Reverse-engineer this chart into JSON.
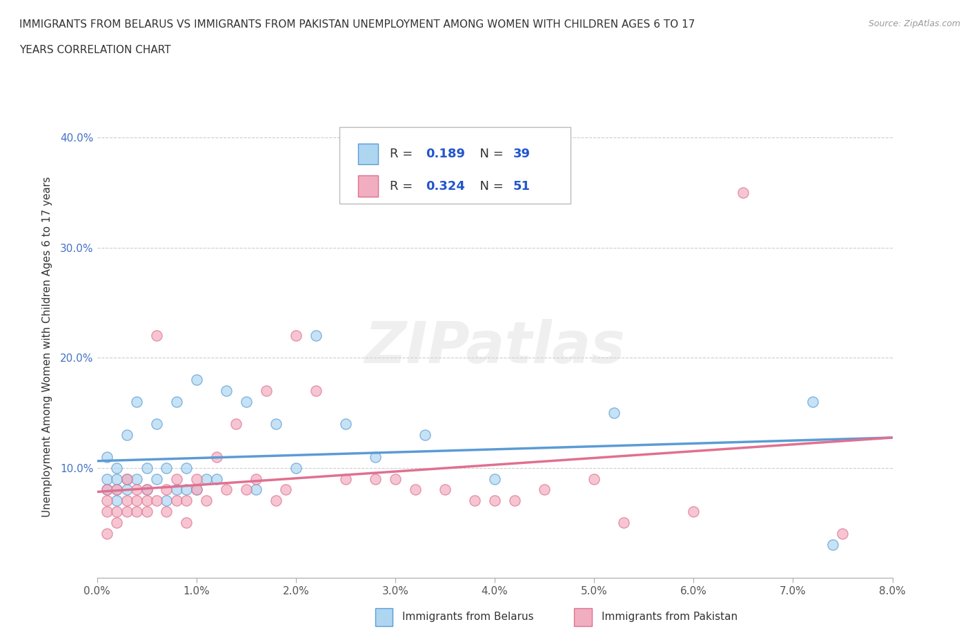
{
  "title_line1": "IMMIGRANTS FROM BELARUS VS IMMIGRANTS FROM PAKISTAN UNEMPLOYMENT AMONG WOMEN WITH CHILDREN AGES 6 TO 17",
  "title_line2": "YEARS CORRELATION CHART",
  "source_text": "Source: ZipAtlas.com",
  "ylabel": "Unemployment Among Women with Children Ages 6 to 17 years",
  "xlim": [
    0.0,
    0.08
  ],
  "ylim": [
    0.0,
    0.42
  ],
  "xticks": [
    0.0,
    0.01,
    0.02,
    0.03,
    0.04,
    0.05,
    0.06,
    0.07,
    0.08
  ],
  "yticks": [
    0.0,
    0.1,
    0.2,
    0.3,
    0.4
  ],
  "xticklabels": [
    "0.0%",
    "1.0%",
    "2.0%",
    "3.0%",
    "4.0%",
    "5.0%",
    "6.0%",
    "7.0%",
    "8.0%"
  ],
  "yticklabels": [
    "",
    "10.0%",
    "20.0%",
    "30.0%",
    "40.0%"
  ],
  "belarus_R": 0.189,
  "belarus_N": 39,
  "pakistan_R": 0.324,
  "pakistan_N": 51,
  "belarus_color": "#aed6f1",
  "pakistan_color": "#f1aec0",
  "belarus_line_color": "#5b9bd5",
  "pakistan_line_color": "#e07090",
  "watermark_text": "ZIPatlas",
  "legend_label_belarus": "Immigrants from Belarus",
  "legend_label_pakistan": "Immigrants from Pakistan",
  "belarus_x": [
    0.001,
    0.001,
    0.001,
    0.002,
    0.002,
    0.002,
    0.002,
    0.003,
    0.003,
    0.003,
    0.004,
    0.004,
    0.005,
    0.005,
    0.006,
    0.006,
    0.007,
    0.007,
    0.008,
    0.008,
    0.009,
    0.009,
    0.01,
    0.01,
    0.011,
    0.012,
    0.013,
    0.015,
    0.016,
    0.018,
    0.02,
    0.022,
    0.025,
    0.028,
    0.033,
    0.04,
    0.052,
    0.072,
    0.074
  ],
  "belarus_y": [
    0.08,
    0.09,
    0.11,
    0.07,
    0.08,
    0.09,
    0.1,
    0.08,
    0.09,
    0.13,
    0.09,
    0.16,
    0.08,
    0.1,
    0.09,
    0.14,
    0.07,
    0.1,
    0.08,
    0.16,
    0.08,
    0.1,
    0.08,
    0.18,
    0.09,
    0.09,
    0.17,
    0.16,
    0.08,
    0.14,
    0.1,
    0.22,
    0.14,
    0.11,
    0.13,
    0.09,
    0.15,
    0.16,
    0.03
  ],
  "pakistan_x": [
    0.001,
    0.001,
    0.001,
    0.001,
    0.002,
    0.002,
    0.002,
    0.003,
    0.003,
    0.003,
    0.004,
    0.004,
    0.004,
    0.005,
    0.005,
    0.005,
    0.006,
    0.006,
    0.007,
    0.007,
    0.008,
    0.008,
    0.009,
    0.009,
    0.01,
    0.01,
    0.011,
    0.012,
    0.013,
    0.014,
    0.015,
    0.016,
    0.017,
    0.018,
    0.019,
    0.02,
    0.022,
    0.025,
    0.028,
    0.03,
    0.032,
    0.035,
    0.038,
    0.04,
    0.042,
    0.045,
    0.05,
    0.053,
    0.06,
    0.065,
    0.075
  ],
  "pakistan_y": [
    0.04,
    0.06,
    0.07,
    0.08,
    0.05,
    0.06,
    0.08,
    0.06,
    0.07,
    0.09,
    0.06,
    0.07,
    0.08,
    0.06,
    0.07,
    0.08,
    0.07,
    0.22,
    0.06,
    0.08,
    0.07,
    0.09,
    0.05,
    0.07,
    0.08,
    0.09,
    0.07,
    0.11,
    0.08,
    0.14,
    0.08,
    0.09,
    0.17,
    0.07,
    0.08,
    0.22,
    0.17,
    0.09,
    0.09,
    0.09,
    0.08,
    0.08,
    0.07,
    0.07,
    0.07,
    0.08,
    0.09,
    0.05,
    0.06,
    0.35,
    0.04
  ]
}
